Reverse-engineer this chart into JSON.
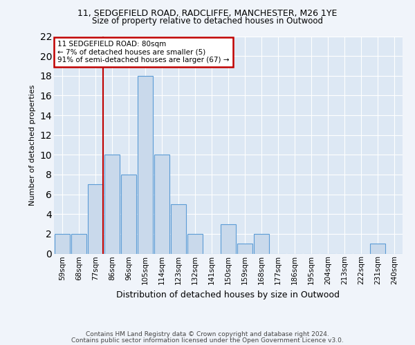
{
  "title1": "11, SEDGEFIELD ROAD, RADCLIFFE, MANCHESTER, M26 1YE",
  "title2": "Size of property relative to detached houses in Outwood",
  "xlabel": "Distribution of detached houses by size in Outwood",
  "ylabel": "Number of detached properties",
  "categories": [
    "59sqm",
    "68sqm",
    "77sqm",
    "86sqm",
    "96sqm",
    "105sqm",
    "114sqm",
    "123sqm",
    "132sqm",
    "141sqm",
    "150sqm",
    "159sqm",
    "168sqm",
    "177sqm",
    "186sqm",
    "195sqm",
    "204sqm",
    "213sqm",
    "222sqm",
    "231sqm",
    "240sqm"
  ],
  "values": [
    2,
    2,
    7,
    10,
    8,
    18,
    10,
    5,
    2,
    0,
    3,
    1,
    2,
    0,
    0,
    0,
    0,
    0,
    0,
    1,
    0
  ],
  "bar_color": "#c9d9eb",
  "bar_edge_color": "#5b9bd5",
  "vline_x_index": 2,
  "vline_color": "#c00000",
  "annotation_line1": "11 SEDGEFIELD ROAD: 80sqm",
  "annotation_line2": "← 7% of detached houses are smaller (5)",
  "annotation_line3": "91% of semi-detached houses are larger (67) →",
  "annotation_box_color": "#c00000",
  "ylim": [
    0,
    22
  ],
  "yticks": [
    0,
    2,
    4,
    6,
    8,
    10,
    12,
    14,
    16,
    18,
    20,
    22
  ],
  "footer1": "Contains HM Land Registry data © Crown copyright and database right 2024.",
  "footer2": "Contains public sector information licensed under the Open Government Licence v3.0.",
  "bg_color": "#dde8f4",
  "grid_color": "#ffffff",
  "fig_bg_color": "#f0f4fa"
}
